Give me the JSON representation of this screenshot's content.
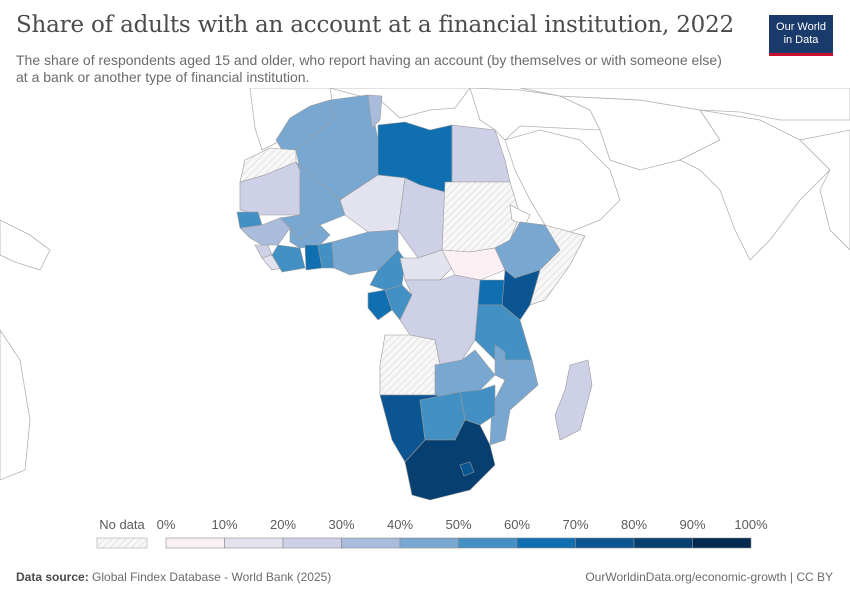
{
  "header": {
    "title": "Share of adults with an account at a financial institution, 2022",
    "subtitle": "The share of respondents aged 15 and older, who report having an account (by themselves or with someone else) at a bank or another type of financial institution.",
    "logo_line1": "Our World",
    "logo_line2": "in Data"
  },
  "legend": {
    "no_data_label": "No data",
    "tick_labels": [
      "0%",
      "10%",
      "20%",
      "30%",
      "40%",
      "50%",
      "60%",
      "70%",
      "80%",
      "90%",
      "100%"
    ],
    "colors": [
      "#fdf0f5",
      "#e3e3f0",
      "#cdd0e6",
      "#a9bcdc",
      "#78a8d2",
      "#4390c4",
      "#0f6fb0",
      "#0a5592",
      "#073f70",
      "#022a50"
    ]
  },
  "footer": {
    "source_label": "Data source:",
    "source_text": "Global Findex Database - World Bank (2025)",
    "credit": "OurWorldinData.org/economic-growth | CC BY"
  },
  "colors": {
    "no_data": "#f5f5f5",
    "border": "#9a9a9a",
    "outline": "#b3b3b3"
  }
}
